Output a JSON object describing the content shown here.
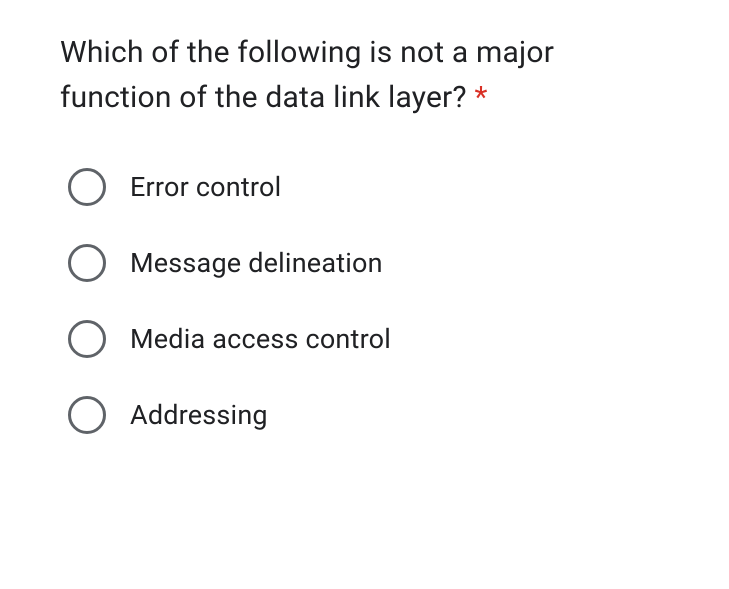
{
  "question": {
    "text": "Which of the following is not a major function of the data link layer? ",
    "required_marker": "*",
    "text_color": "#202124",
    "asterisk_color": "#d93025",
    "font_size": 30
  },
  "options": [
    {
      "label": "Error control"
    },
    {
      "label": "Message delineation"
    },
    {
      "label": "Media access control"
    },
    {
      "label": "Addressing"
    }
  ],
  "styling": {
    "radio_border_color": "#5f6368",
    "radio_size": 38,
    "radio_border_width": 3,
    "option_font_size": 27,
    "option_text_color": "#202124",
    "background_color": "#ffffff",
    "option_gap": 38
  }
}
